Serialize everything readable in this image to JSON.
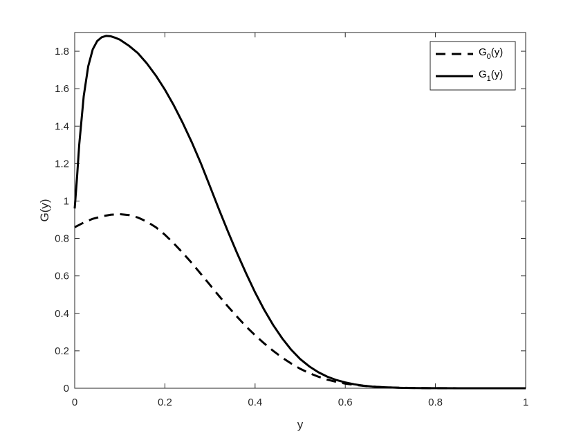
{
  "chart_data": {
    "type": "line",
    "title": "",
    "xlabel": "y",
    "ylabel": "G(y)",
    "xlim": [
      0,
      1
    ],
    "ylim": [
      0,
      1.9
    ],
    "xticks": [
      0,
      0.2,
      0.4,
      0.6,
      0.8,
      1
    ],
    "xtick_labels": [
      "0",
      "0.2",
      "0.4",
      "0.6",
      "0.8",
      "1"
    ],
    "yticks": [
      0,
      0.2,
      0.4,
      0.6,
      0.8,
      1,
      1.2,
      1.4,
      1.6,
      1.8
    ],
    "ytick_labels": [
      "0",
      "0.2",
      "0.4",
      "0.6",
      "0.8",
      "1",
      "1.2",
      "1.4",
      "1.6",
      "1.8"
    ],
    "grid": false,
    "legend_position": "top-right",
    "line_color": "#000000",
    "series": [
      {
        "name_base": "G",
        "name_sub": "0",
        "name_tail": "(y)",
        "style": "dashed",
        "x": [
          0,
          0.02,
          0.04,
          0.06,
          0.08,
          0.1,
          0.12,
          0.14,
          0.16,
          0.18,
          0.2,
          0.22,
          0.24,
          0.26,
          0.28,
          0.3,
          0.32,
          0.34,
          0.36,
          0.38,
          0.4,
          0.42,
          0.44,
          0.46,
          0.48,
          0.5,
          0.52,
          0.54,
          0.56,
          0.58,
          0.6,
          0.62,
          0.64,
          0.66,
          0.68,
          0.7,
          0.72,
          0.74,
          0.76,
          0.78,
          0.8,
          0.85,
          0.9,
          0.95,
          1
        ],
        "y": [
          0.86,
          0.885,
          0.905,
          0.918,
          0.927,
          0.93,
          0.925,
          0.912,
          0.89,
          0.86,
          0.82,
          0.773,
          0.722,
          0.668,
          0.61,
          0.552,
          0.493,
          0.436,
          0.382,
          0.33,
          0.283,
          0.24,
          0.2,
          0.164,
          0.132,
          0.104,
          0.081,
          0.062,
          0.046,
          0.034,
          0.025,
          0.018,
          0.013,
          0.009,
          0.006,
          0.004,
          0.003,
          0.002,
          0.0013,
          0.0008,
          0.0005,
          0.0002,
          0.0001,
          3e-05,
          0
        ]
      },
      {
        "name_base": "G",
        "name_sub": "1",
        "name_tail": "(y)",
        "style": "solid",
        "x": [
          0,
          0.005,
          0.01,
          0.02,
          0.03,
          0.04,
          0.05,
          0.06,
          0.07,
          0.08,
          0.09,
          0.1,
          0.12,
          0.14,
          0.16,
          0.18,
          0.2,
          0.22,
          0.24,
          0.26,
          0.28,
          0.3,
          0.32,
          0.34,
          0.36,
          0.38,
          0.4,
          0.42,
          0.44,
          0.46,
          0.48,
          0.5,
          0.52,
          0.54,
          0.56,
          0.58,
          0.6,
          0.62,
          0.64,
          0.66,
          0.68,
          0.7,
          0.72,
          0.74,
          0.76,
          0.78,
          0.8,
          0.85,
          0.9,
          0.95,
          1
        ],
        "y": [
          0.96,
          1.12,
          1.3,
          1.56,
          1.72,
          1.81,
          1.855,
          1.875,
          1.882,
          1.88,
          1.872,
          1.862,
          1.83,
          1.79,
          1.735,
          1.67,
          1.595,
          1.51,
          1.415,
          1.312,
          1.2,
          1.078,
          0.955,
          0.836,
          0.722,
          0.614,
          0.512,
          0.42,
          0.338,
          0.267,
          0.206,
          0.156,
          0.117,
          0.086,
          0.062,
          0.044,
          0.031,
          0.021,
          0.014,
          0.009,
          0.006,
          0.004,
          0.0025,
          0.0016,
          0.001,
          0.0006,
          0.0004,
          0.0001,
          4e-05,
          1e-05,
          0
        ]
      }
    ]
  }
}
